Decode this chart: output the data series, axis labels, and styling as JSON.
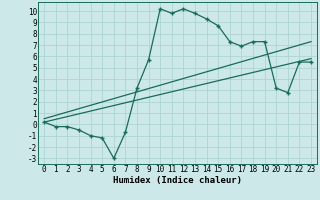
{
  "xlabel": "Humidex (Indice chaleur)",
  "bg_color": "#cce8e8",
  "line_color": "#1a6b5a",
  "xlim": [
    -0.5,
    23.5
  ],
  "ylim": [
    -3.5,
    10.8
  ],
  "xticks": [
    0,
    1,
    2,
    3,
    4,
    5,
    6,
    7,
    8,
    9,
    10,
    11,
    12,
    13,
    14,
    15,
    16,
    17,
    18,
    19,
    20,
    21,
    22,
    23
  ],
  "yticks": [
    -3,
    -2,
    -1,
    0,
    1,
    2,
    3,
    4,
    5,
    6,
    7,
    8,
    9,
    10
  ],
  "main_x": [
    0,
    1,
    2,
    3,
    4,
    5,
    6,
    7,
    8,
    9,
    10,
    11,
    12,
    13,
    14,
    15,
    16,
    17,
    18,
    19,
    20,
    21,
    22,
    23
  ],
  "main_y": [
    0.2,
    -0.2,
    -0.2,
    -0.5,
    -1.0,
    -1.2,
    -3.0,
    -0.7,
    3.2,
    5.7,
    10.2,
    9.8,
    10.2,
    9.8,
    9.3,
    8.7,
    7.3,
    6.9,
    7.3,
    7.3,
    3.2,
    2.8,
    5.5,
    5.5
  ],
  "trend1_x": [
    0,
    23
  ],
  "trend1_y": [
    0.5,
    7.3
  ],
  "trend2_x": [
    0,
    23
  ],
  "trend2_y": [
    0.2,
    5.8
  ],
  "grid_color": "#aed4d4",
  "tick_fontsize": 5.5,
  "label_fontsize": 6.5
}
